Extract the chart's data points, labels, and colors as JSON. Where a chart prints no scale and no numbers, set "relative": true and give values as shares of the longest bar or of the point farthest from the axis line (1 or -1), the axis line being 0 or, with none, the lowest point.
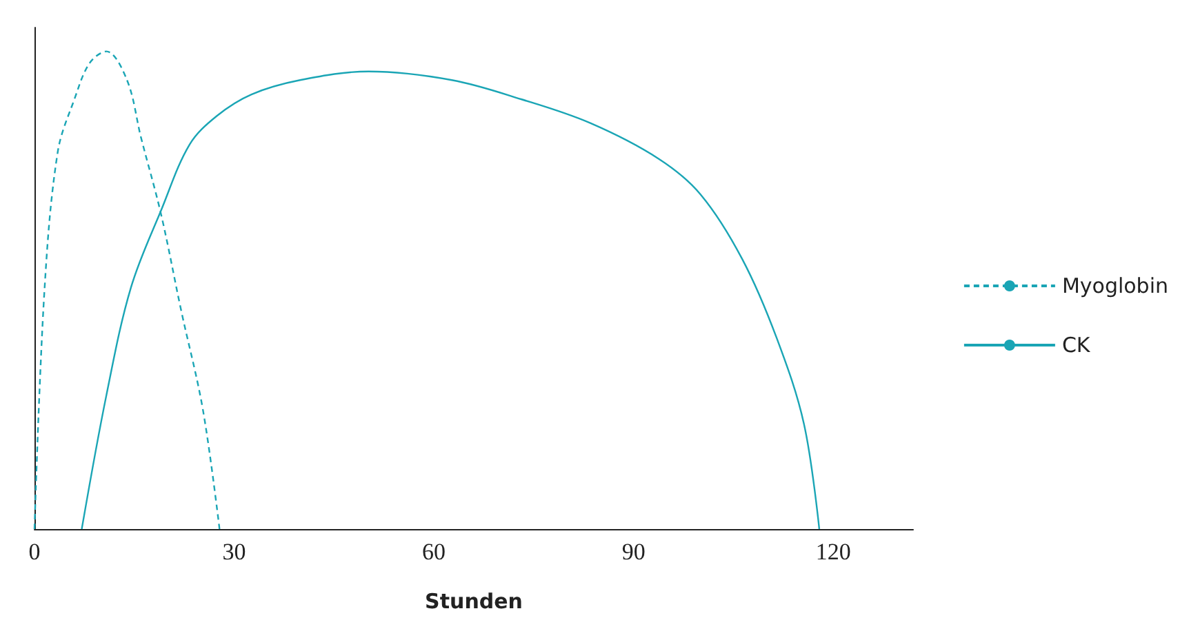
{
  "chart_data": {
    "type": "line",
    "relative": true,
    "xlabel": "Stunden",
    "xlim": [
      0,
      132
    ],
    "xticks": [
      0,
      30,
      60,
      90,
      120
    ],
    "tick_labels": "x",
    "grid": false,
    "legend": "right",
    "marker": "none",
    "series": [
      {
        "name": "Myoglobin",
        "color": "#1aa5b5",
        "line_style": "dashed",
        "x": [
          0,
          1.5,
          3.5,
          6,
          8.3,
          10.8,
          13.9,
          16,
          19,
          22,
          25.3,
          27.8
        ],
        "values": [
          0,
          0.5,
          0.79,
          0.9,
          0.976,
          1,
          0.94,
          0.82,
          0.66,
          0.46,
          0.25,
          0
        ]
      },
      {
        "name": "CK",
        "color": "#1aa5b5",
        "line_style": "solid",
        "x": [
          7.1,
          10.8,
          14.5,
          19.1,
          23.3,
          27.4,
          32.6,
          39.9,
          50.2,
          62.7,
          73.1,
          83.5,
          93.8,
          100.1,
          106.3,
          111.5,
          115.6,
          117.9
        ],
        "values": [
          0,
          0.28,
          0.506,
          0.67,
          0.805,
          0.865,
          0.91,
          0.94,
          0.958,
          0.94,
          0.9,
          0.85,
          0.775,
          0.7,
          0.566,
          0.4,
          0.22,
          0
        ]
      }
    ]
  }
}
